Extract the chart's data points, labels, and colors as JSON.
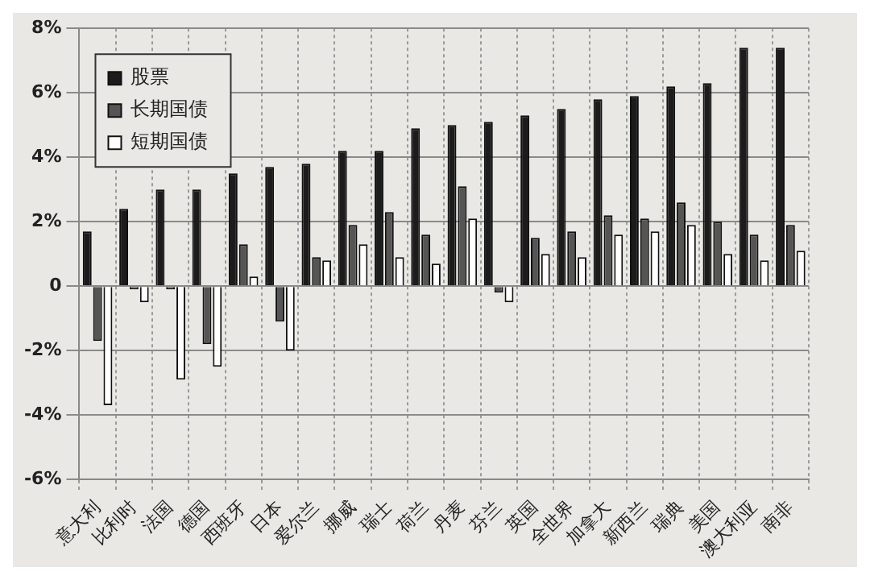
{
  "chart_data": {
    "type": "bar",
    "categories": [
      "意大利",
      "比利时",
      "法国",
      "德国",
      "西班牙",
      "日本",
      "爱尔兰",
      "挪威",
      "瑞士",
      "荷兰",
      "丹麦",
      "芬兰",
      "英国",
      "全世界",
      "加拿大",
      "新西兰",
      "瑞典",
      "美国",
      "澳大利亚",
      "南非"
    ],
    "series": [
      {
        "name": "股票",
        "color": "#1c1c1c",
        "values": [
          1.7,
          2.4,
          3.0,
          3.0,
          3.5,
          3.7,
          3.8,
          4.2,
          4.2,
          4.9,
          5.0,
          5.1,
          5.3,
          5.5,
          5.8,
          5.9,
          6.2,
          6.3,
          7.4,
          7.4
        ]
      },
      {
        "name": "长期国债",
        "color": "#555555",
        "values": [
          -1.7,
          -0.1,
          -0.1,
          -1.8,
          1.3,
          -1.1,
          0.9,
          1.9,
          2.3,
          1.6,
          3.1,
          -0.2,
          1.5,
          1.7,
          2.2,
          2.1,
          2.6,
          2.0,
          1.6,
          1.9
        ]
      },
      {
        "name": "短期国债",
        "color": "#ffffff",
        "values": [
          -3.7,
          -0.5,
          -2.9,
          -2.5,
          0.3,
          -2.0,
          0.8,
          1.3,
          0.9,
          0.7,
          2.1,
          -0.5,
          1.0,
          0.9,
          1.6,
          1.7,
          1.9,
          1.0,
          0.8,
          1.1
        ]
      }
    ],
    "ylim": [
      -6,
      8
    ],
    "yticks": [
      {
        "value": -6,
        "label": "-6%"
      },
      {
        "value": -4,
        "label": "-4%"
      },
      {
        "value": -2,
        "label": "-2%"
      },
      0,
      {
        "value": 2,
        "label": "2%"
      },
      {
        "value": 4,
        "label": "4%"
      },
      {
        "value": 6,
        "label": "6%"
      },
      {
        "value": 8,
        "label": "8%"
      }
    ],
    "grid": true,
    "legend": "top left"
  }
}
